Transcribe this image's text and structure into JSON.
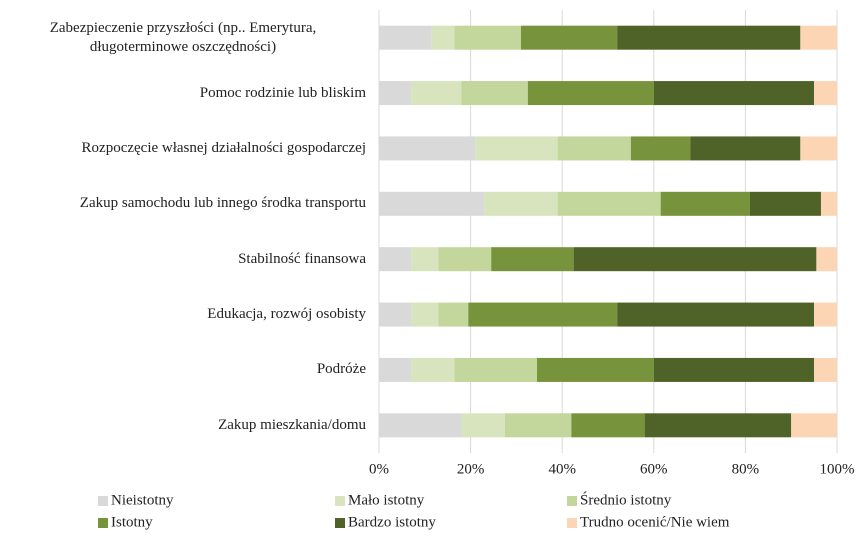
{
  "chart_data": {
    "type": "stacked_bar_horizontal",
    "categories": [
      "Zabezpieczenie przyszłości (np.. Emerytura, długoterminowe oszczędności)",
      "Pomoc rodzinie lub bliskim",
      "Rozpoczęcie własnej działalności gospodarczej",
      "Zakup samochodu lub innego środka transportu",
      "Stabilność finansowa",
      "Edukacja, rozwój osobisty",
      "Podróże",
      "Zakup mieszkania/domu"
    ],
    "series": [
      {
        "name": "Nieistotny",
        "color": "#d9d9d9",
        "values": [
          11.5,
          7,
          21,
          23,
          7,
          7,
          7,
          18
        ]
      },
      {
        "name": "Mało istotny",
        "color": "#d7e4bd",
        "values": [
          5,
          11,
          18,
          16,
          6,
          6,
          9.5,
          9.5
        ]
      },
      {
        "name": "Średnio istotny",
        "color": "#c3d69b",
        "values": [
          14.5,
          14.5,
          16,
          22.5,
          11.5,
          6.5,
          18,
          14.5
        ]
      },
      {
        "name": "Istotny",
        "color": "#77933c",
        "values": [
          21,
          27.5,
          13,
          19.5,
          18,
          32.5,
          25.5,
          16
        ]
      },
      {
        "name": "Bardzo istotny",
        "color": "#4f6228",
        "values": [
          40,
          35,
          24,
          15.5,
          53,
          43,
          35,
          32
        ]
      },
      {
        "name": "Trudno ocenić/Nie wiem",
        "color": "#fcd5b5",
        "values": [
          8,
          5,
          8,
          3.5,
          4.5,
          5,
          5,
          10
        ]
      }
    ],
    "xlim": [
      0,
      100
    ],
    "xticks": [
      {
        "value": 0,
        "label": "0%"
      },
      {
        "value": 20,
        "label": "20%"
      },
      {
        "value": 40,
        "label": "40%"
      },
      {
        "value": 60,
        "label": "60%"
      },
      {
        "value": 80,
        "label": "80%"
      },
      {
        "value": 100,
        "label": "100%"
      }
    ],
    "grid": true,
    "legend": "bottom"
  }
}
